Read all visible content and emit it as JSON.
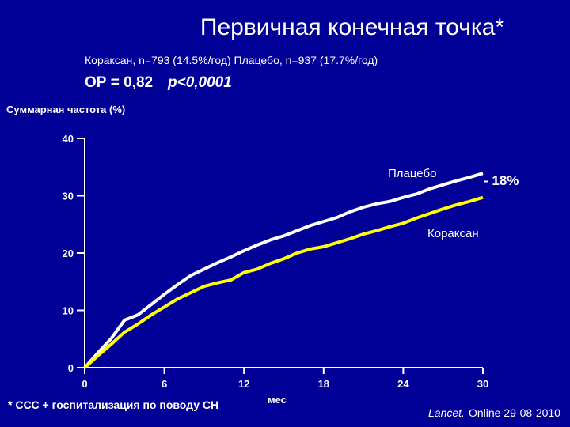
{
  "chart_data": {
    "type": "line",
    "title": "Первичная конечная точка*",
    "subtitle": "Кораксан, n=793 (14.5%/год) Плацебо, n=937 (17.7%/год)",
    "hazard_ratio": "ОР = 0,82",
    "p_value": "p<0,0001",
    "y_label": "Суммарная частота (%)",
    "x_label": "мес",
    "footnote": "* ССС + госпитализация по поводу СН",
    "source_journal": "Lancet.",
    "source_rest": "Online 29-08-2010",
    "annotations": [
      "Плацебо",
      "- 18%",
      "Кораксан"
    ],
    "x": [
      0,
      1,
      2,
      3,
      4,
      5,
      6,
      7,
      8,
      9,
      10,
      11,
      12,
      13,
      14,
      15,
      16,
      17,
      18,
      19,
      20,
      21,
      22,
      23,
      24,
      25,
      26,
      27,
      28,
      29,
      30
    ],
    "series": [
      {
        "name": "Плацебо",
        "color": "#ffffff",
        "values": [
          0,
          2.6,
          5.1,
          8.3,
          9.2,
          11,
          12.8,
          14.5,
          16.1,
          17.2,
          18.3,
          19.3,
          20.4,
          21.4,
          22.3,
          23,
          23.9,
          24.8,
          25.5,
          26.2,
          27.2,
          28,
          28.6,
          29,
          29.7,
          30.3,
          31.2,
          31.9,
          32.6,
          33.2,
          33.9
        ]
      },
      {
        "name": "Кораксан",
        "color": "#ffff00",
        "values": [
          0,
          2.1,
          4.1,
          6.2,
          7.6,
          9.2,
          10.6,
          12,
          13.1,
          14.2,
          14.8,
          15.3,
          16.6,
          17.2,
          18.2,
          19,
          20,
          20.7,
          21.1,
          21.8,
          22.5,
          23.3,
          23.9,
          24.6,
          25.2,
          26.1,
          26.9,
          27.7,
          28.4,
          29,
          29.7
        ]
      }
    ],
    "xlim": [
      0,
      30
    ],
    "xticks": [
      0,
      6,
      12,
      18,
      24,
      30
    ],
    "ylim": [
      0,
      40
    ],
    "yticks": [
      0,
      10,
      20,
      30,
      40
    ]
  }
}
